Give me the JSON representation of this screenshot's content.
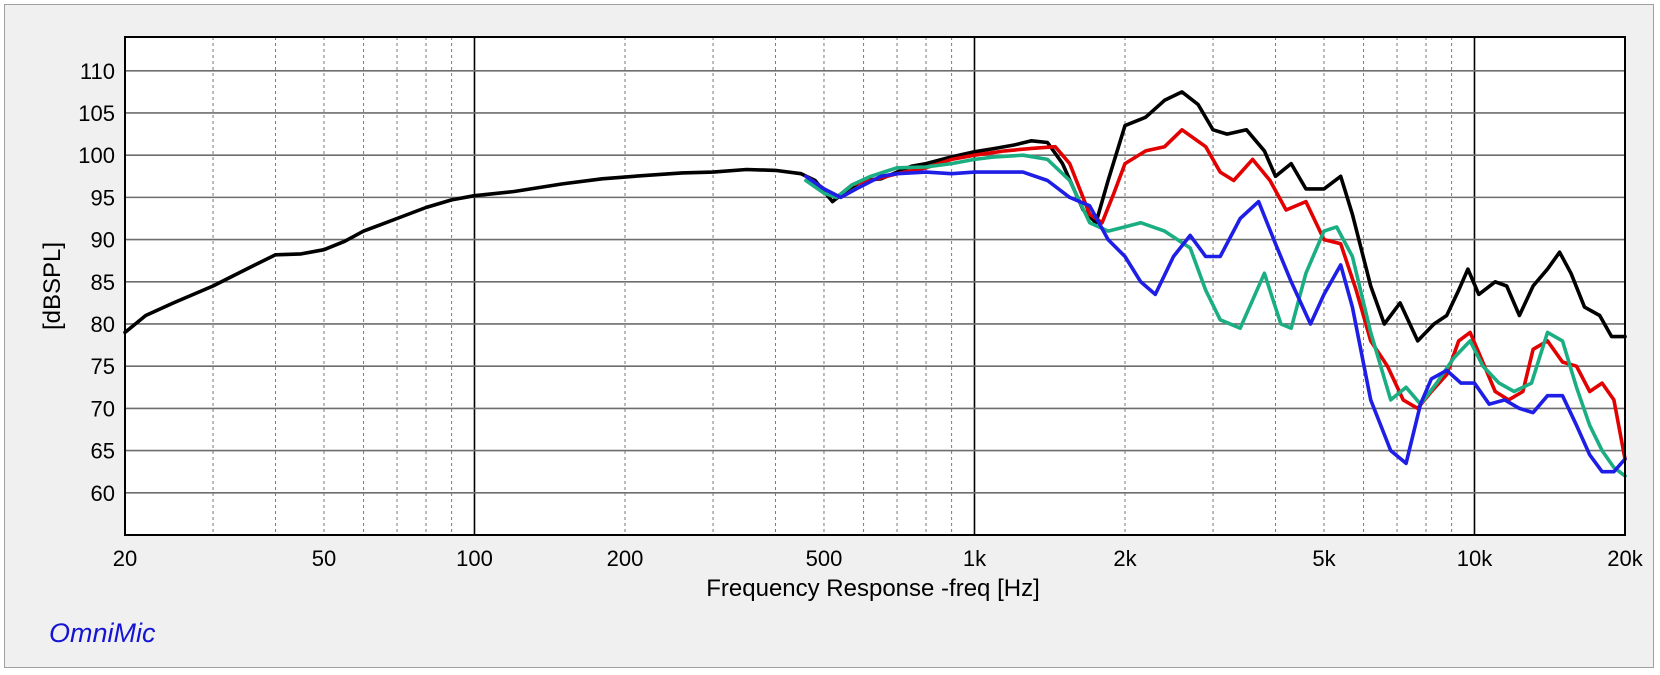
{
  "brand": "OmniMic",
  "chart_data": {
    "type": "line",
    "title": "",
    "xlabel": "Frequency Response -freq [Hz]",
    "ylabel": "[dBSPL]",
    "xscale": "log",
    "xlim": [
      20,
      20000
    ],
    "ylim": [
      55,
      114
    ],
    "grid": true,
    "legend": "none",
    "x_ticks": [
      20,
      50,
      100,
      200,
      500,
      1000,
      2000,
      5000,
      10000,
      20000
    ],
    "x_tick_labels": [
      "20",
      "50",
      "100",
      "200",
      "500",
      "1k",
      "2k",
      "5k",
      "10k",
      "20k"
    ],
    "y_ticks": [
      60,
      65,
      70,
      75,
      80,
      85,
      90,
      95,
      100,
      105,
      110
    ],
    "y_tick_labels": [
      "60",
      "65",
      "70",
      "75",
      "80",
      "85",
      "90",
      "95",
      "100",
      "105",
      "110"
    ],
    "series": [
      {
        "color": "#000000",
        "points": [
          [
            20,
            79
          ],
          [
            22,
            81
          ],
          [
            25,
            82.5
          ],
          [
            30,
            84.5
          ],
          [
            35,
            86.5
          ],
          [
            40,
            88.2
          ],
          [
            45,
            88.3
          ],
          [
            50,
            88.8
          ],
          [
            55,
            89.8
          ],
          [
            60,
            91
          ],
          [
            70,
            92.5
          ],
          [
            80,
            93.8
          ],
          [
            90,
            94.7
          ],
          [
            100,
            95.2
          ],
          [
            120,
            95.7
          ],
          [
            150,
            96.6
          ],
          [
            180,
            97.2
          ],
          [
            220,
            97.6
          ],
          [
            260,
            97.9
          ],
          [
            300,
            98
          ],
          [
            350,
            98.3
          ],
          [
            400,
            98.2
          ],
          [
            450,
            97.8
          ],
          [
            480,
            97
          ],
          [
            520,
            94.5
          ],
          [
            560,
            96
          ],
          [
            600,
            97
          ],
          [
            650,
            97.2
          ],
          [
            700,
            98
          ],
          [
            750,
            98.7
          ],
          [
            800,
            99
          ],
          [
            900,
            99.8
          ],
          [
            1000,
            100.4
          ],
          [
            1100,
            100.8
          ],
          [
            1200,
            101.2
          ],
          [
            1300,
            101.7
          ],
          [
            1400,
            101.5
          ],
          [
            1500,
            99
          ],
          [
            1650,
            93.5
          ],
          [
            1750,
            92
          ],
          [
            1850,
            97
          ],
          [
            2000,
            103.5
          ],
          [
            2200,
            104.5
          ],
          [
            2400,
            106.5
          ],
          [
            2600,
            107.5
          ],
          [
            2800,
            106
          ],
          [
            3000,
            103
          ],
          [
            3200,
            102.5
          ],
          [
            3500,
            103
          ],
          [
            3800,
            100.5
          ],
          [
            4000,
            97.5
          ],
          [
            4300,
            99
          ],
          [
            4600,
            96
          ],
          [
            5000,
            96
          ],
          [
            5400,
            97.5
          ],
          [
            5700,
            93
          ],
          [
            6200,
            84.5
          ],
          [
            6600,
            80
          ],
          [
            7100,
            82.5
          ],
          [
            7700,
            78
          ],
          [
            8300,
            80
          ],
          [
            8800,
            81
          ],
          [
            9300,
            84
          ],
          [
            9700,
            86.5
          ],
          [
            10200,
            83.5
          ],
          [
            11000,
            85
          ],
          [
            11600,
            84.5
          ],
          [
            12300,
            81
          ],
          [
            13100,
            84.5
          ],
          [
            14000,
            86.5
          ],
          [
            14800,
            88.5
          ],
          [
            15600,
            86
          ],
          [
            16600,
            82
          ],
          [
            17800,
            81
          ],
          [
            18800,
            78.5
          ],
          [
            20000,
            78.5
          ]
        ]
      },
      {
        "color": "#e30000",
        "points": [
          [
            460,
            97.5
          ],
          [
            500,
            96
          ],
          [
            530,
            95
          ],
          [
            570,
            96.5
          ],
          [
            620,
            97
          ],
          [
            700,
            97.8
          ],
          [
            800,
            98.5
          ],
          [
            900,
            99.5
          ],
          [
            1000,
            100
          ],
          [
            1150,
            100.5
          ],
          [
            1300,
            100.8
          ],
          [
            1450,
            101
          ],
          [
            1550,
            99
          ],
          [
            1700,
            93
          ],
          [
            1800,
            92
          ],
          [
            1900,
            95.5
          ],
          [
            2000,
            99
          ],
          [
            2200,
            100.5
          ],
          [
            2400,
            101
          ],
          [
            2600,
            103
          ],
          [
            2900,
            101
          ],
          [
            3100,
            98
          ],
          [
            3300,
            97
          ],
          [
            3600,
            99.5
          ],
          [
            3900,
            97
          ],
          [
            4200,
            93.5
          ],
          [
            4600,
            94.5
          ],
          [
            5000,
            90
          ],
          [
            5400,
            89.5
          ],
          [
            5800,
            84
          ],
          [
            6200,
            78
          ],
          [
            6700,
            75
          ],
          [
            7200,
            71
          ],
          [
            7700,
            70
          ],
          [
            8200,
            72
          ],
          [
            8800,
            74
          ],
          [
            9300,
            78
          ],
          [
            9800,
            79
          ],
          [
            10300,
            76
          ],
          [
            11000,
            72
          ],
          [
            11700,
            71
          ],
          [
            12500,
            72
          ],
          [
            13100,
            77
          ],
          [
            14000,
            78
          ],
          [
            15000,
            75.5
          ],
          [
            16000,
            75
          ],
          [
            17000,
            72
          ],
          [
            18000,
            73
          ],
          [
            19000,
            71
          ],
          [
            20000,
            64
          ]
        ]
      },
      {
        "color": "#1aae82",
        "points": [
          [
            460,
            97
          ],
          [
            500,
            95.5
          ],
          [
            530,
            95
          ],
          [
            570,
            96.5
          ],
          [
            620,
            97.5
          ],
          [
            700,
            98.5
          ],
          [
            800,
            98.6
          ],
          [
            900,
            99
          ],
          [
            1000,
            99.5
          ],
          [
            1100,
            99.8
          ],
          [
            1250,
            100
          ],
          [
            1400,
            99.5
          ],
          [
            1550,
            97
          ],
          [
            1700,
            92
          ],
          [
            1850,
            91
          ],
          [
            2000,
            91.5
          ],
          [
            2150,
            92
          ],
          [
            2400,
            91
          ],
          [
            2700,
            89
          ],
          [
            2900,
            84
          ],
          [
            3100,
            80.5
          ],
          [
            3400,
            79.5
          ],
          [
            3800,
            86
          ],
          [
            4100,
            80
          ],
          [
            4300,
            79.5
          ],
          [
            4600,
            86
          ],
          [
            5000,
            91
          ],
          [
            5300,
            91.5
          ],
          [
            5700,
            88
          ],
          [
            6200,
            79
          ],
          [
            6800,
            71
          ],
          [
            7300,
            72.5
          ],
          [
            7800,
            70.5
          ],
          [
            8400,
            73
          ],
          [
            9100,
            76
          ],
          [
            9800,
            78
          ],
          [
            10400,
            75
          ],
          [
            11200,
            73
          ],
          [
            12000,
            72
          ],
          [
            13000,
            73
          ],
          [
            14000,
            79
          ],
          [
            15000,
            78
          ],
          [
            16000,
            72.5
          ],
          [
            17000,
            68
          ],
          [
            18000,
            65
          ],
          [
            19000,
            63
          ],
          [
            20000,
            62
          ]
        ]
      },
      {
        "color": "#1e1ee6",
        "points": [
          [
            460,
            97.5
          ],
          [
            500,
            96
          ],
          [
            540,
            95
          ],
          [
            580,
            96
          ],
          [
            650,
            97.5
          ],
          [
            700,
            97.8
          ],
          [
            800,
            98
          ],
          [
            900,
            97.8
          ],
          [
            1000,
            98
          ],
          [
            1100,
            98
          ],
          [
            1250,
            98
          ],
          [
            1400,
            97
          ],
          [
            1550,
            95
          ],
          [
            1700,
            94
          ],
          [
            1850,
            90
          ],
          [
            2000,
            88
          ],
          [
            2150,
            85
          ],
          [
            2300,
            83.5
          ],
          [
            2500,
            88
          ],
          [
            2700,
            90.5
          ],
          [
            2900,
            88
          ],
          [
            3100,
            88
          ],
          [
            3400,
            92.5
          ],
          [
            3700,
            94.5
          ],
          [
            4000,
            89.5
          ],
          [
            4300,
            85
          ],
          [
            4700,
            80
          ],
          [
            5000,
            83.5
          ],
          [
            5400,
            87
          ],
          [
            5700,
            82
          ],
          [
            6200,
            71
          ],
          [
            6800,
            65
          ],
          [
            7300,
            63.5
          ],
          [
            7800,
            70.5
          ],
          [
            8200,
            73.5
          ],
          [
            8800,
            74.5
          ],
          [
            9400,
            73
          ],
          [
            10000,
            73
          ],
          [
            10700,
            70.5
          ],
          [
            11500,
            71
          ],
          [
            12300,
            70
          ],
          [
            13100,
            69.5
          ],
          [
            14000,
            71.5
          ],
          [
            15000,
            71.5
          ],
          [
            16000,
            68
          ],
          [
            17000,
            64.5
          ],
          [
            18000,
            62.5
          ],
          [
            19000,
            62.5
          ],
          [
            20000,
            64
          ]
        ]
      }
    ]
  }
}
